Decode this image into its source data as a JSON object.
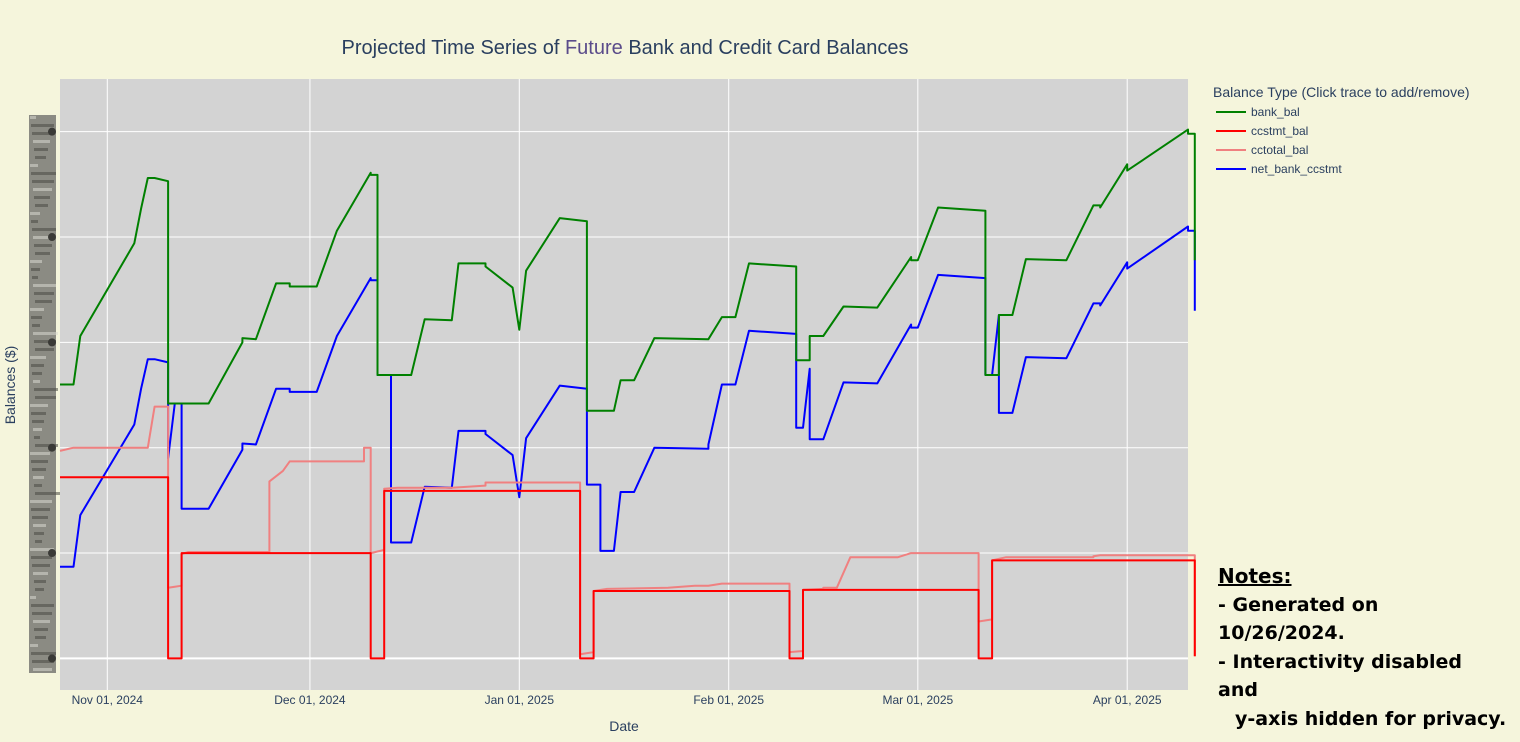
{
  "colors": {
    "background": "#f5f5dc",
    "plot_bg": "#d3d3d3",
    "grid": "#ffffff",
    "text": "#2a3f5f"
  },
  "notes": {
    "heading": "Notes:",
    "lines": [
      "- Generated on 10/26/2024.",
      "- Interactivity disabled and",
      "y-axis hidden for privacy."
    ]
  },
  "chart_data": {
    "type": "line",
    "line_shape": "step-like time series",
    "title_parts": [
      "Projected Time Series of ",
      "Future",
      " Bank and Credit Card Balances"
    ],
    "xlabel": "Date",
    "ylabel": "Balances ($)",
    "x_range": [
      "2024-10-25",
      "2025-04-10"
    ],
    "y_range": [
      -0.3,
      5.5
    ],
    "y_axis_hidden": true,
    "y_ticks": [
      0,
      1,
      2,
      3,
      4,
      5
    ],
    "grid": true,
    "x_ticks": [
      {
        "date": "2024-11-01",
        "label": "Nov 01, 2024"
      },
      {
        "date": "2024-12-01",
        "label": "Dec 01, 2024"
      },
      {
        "date": "2025-01-01",
        "label": "Jan 01, 2025"
      },
      {
        "date": "2025-02-01",
        "label": "Feb 01, 2025"
      },
      {
        "date": "2025-03-01",
        "label": "Mar 01, 2025"
      },
      {
        "date": "2025-04-01",
        "label": "Apr 01, 2025"
      }
    ],
    "legend": {
      "title": "Balance Type (Click trace to add/remove)",
      "placement": "right-top"
    },
    "series": [
      {
        "name": "bank_bal",
        "color": "#008000",
        "points": [
          [
            "2024-10-25",
            2.6
          ],
          [
            "2024-10-27",
            2.6
          ],
          [
            "2024-10-28",
            3.06
          ],
          [
            "2024-11-05",
            3.94
          ],
          [
            "2024-11-06",
            4.27
          ],
          [
            "2024-11-07",
            4.56
          ],
          [
            "2024-11-08",
            4.56
          ],
          [
            "2024-11-10",
            4.53
          ],
          [
            "2024-11-10",
            2.42
          ],
          [
            "2024-11-13",
            2.42
          ],
          [
            "2024-11-16",
            2.42
          ],
          [
            "2024-11-21",
            3.0
          ],
          [
            "2024-11-21",
            3.04
          ],
          [
            "2024-11-23",
            3.03
          ],
          [
            "2024-11-26",
            3.56
          ],
          [
            "2024-11-28",
            3.56
          ],
          [
            "2024-11-28",
            3.53
          ],
          [
            "2024-12-02",
            3.53
          ],
          [
            "2024-12-05",
            4.06
          ],
          [
            "2024-12-10",
            4.61
          ],
          [
            "2024-12-10",
            4.59
          ],
          [
            "2024-12-11",
            4.59
          ],
          [
            "2024-12-11",
            2.69
          ],
          [
            "2024-12-13",
            2.69
          ],
          [
            "2024-12-16",
            2.69
          ],
          [
            "2024-12-18",
            3.22
          ],
          [
            "2024-12-22",
            3.21
          ],
          [
            "2024-12-23",
            3.75
          ],
          [
            "2024-12-27",
            3.75
          ],
          [
            "2024-12-27",
            3.72
          ],
          [
            "2024-12-31",
            3.52
          ],
          [
            "2025-01-01",
            3.12
          ],
          [
            "2025-01-02",
            3.68
          ],
          [
            "2025-01-07",
            4.18
          ],
          [
            "2025-01-11",
            4.15
          ],
          [
            "2025-01-11",
            2.35
          ],
          [
            "2025-01-13",
            2.35
          ],
          [
            "2025-01-15",
            2.35
          ],
          [
            "2025-01-16",
            2.64
          ],
          [
            "2025-01-18",
            2.64
          ],
          [
            "2025-01-21",
            3.04
          ],
          [
            "2025-01-29",
            3.03
          ],
          [
            "2025-01-31",
            3.24
          ],
          [
            "2025-02-02",
            3.24
          ],
          [
            "2025-02-04",
            3.75
          ],
          [
            "2025-02-11",
            3.72
          ],
          [
            "2025-02-11",
            2.83
          ],
          [
            "2025-02-13",
            2.83
          ],
          [
            "2025-02-13",
            3.06
          ],
          [
            "2025-02-15",
            3.06
          ],
          [
            "2025-02-18",
            3.34
          ],
          [
            "2025-02-23",
            3.33
          ],
          [
            "2025-02-28",
            3.81
          ],
          [
            "2025-02-28",
            3.78
          ],
          [
            "2025-03-01",
            3.78
          ],
          [
            "2025-03-04",
            4.28
          ],
          [
            "2025-03-11",
            4.25
          ],
          [
            "2025-03-11",
            2.69
          ],
          [
            "2025-03-13",
            2.69
          ],
          [
            "2025-03-13",
            3.26
          ],
          [
            "2025-03-15",
            3.26
          ],
          [
            "2025-03-17",
            3.79
          ],
          [
            "2025-03-23",
            3.78
          ],
          [
            "2025-03-27",
            4.3
          ],
          [
            "2025-03-28",
            4.3
          ],
          [
            "2025-03-28",
            4.28
          ],
          [
            "2025-04-01",
            4.69
          ],
          [
            "2025-04-01",
            4.63
          ],
          [
            "2025-04-10",
            5.02
          ],
          [
            "2025-04-10",
            4.98
          ],
          [
            "2025-04-11",
            4.98
          ],
          [
            "2025-04-11",
            3.78
          ]
        ]
      },
      {
        "name": "ccstmt_bal",
        "color": "#ff0000",
        "points": [
          [
            "2024-10-25",
            1.72
          ],
          [
            "2024-11-10",
            1.72
          ],
          [
            "2024-11-10",
            0.0
          ],
          [
            "2024-11-12",
            0.0
          ],
          [
            "2024-11-12",
            1.0
          ],
          [
            "2024-12-10",
            1.0
          ],
          [
            "2024-12-10",
            0.0
          ],
          [
            "2024-12-12",
            0.0
          ],
          [
            "2024-12-12",
            1.59
          ],
          [
            "2025-01-10",
            1.59
          ],
          [
            "2025-01-10",
            0.0
          ],
          [
            "2025-01-12",
            0.0
          ],
          [
            "2025-01-12",
            0.64
          ],
          [
            "2025-02-10",
            0.64
          ],
          [
            "2025-02-10",
            0.0
          ],
          [
            "2025-02-12",
            0.0
          ],
          [
            "2025-02-12",
            0.65
          ],
          [
            "2025-03-10",
            0.65
          ],
          [
            "2025-03-10",
            0.0
          ],
          [
            "2025-03-12",
            0.0
          ],
          [
            "2025-03-12",
            0.93
          ],
          [
            "2025-04-11",
            0.93
          ],
          [
            "2025-04-11",
            0.02
          ]
        ]
      },
      {
        "name": "cctotal_bal",
        "color": "#f08080",
        "points": [
          [
            "2024-10-25",
            1.97
          ],
          [
            "2024-10-27",
            2.0
          ],
          [
            "2024-11-07",
            2.0
          ],
          [
            "2024-11-08",
            2.39
          ],
          [
            "2024-11-10",
            2.39
          ],
          [
            "2024-11-10",
            0.67
          ],
          [
            "2024-11-11",
            0.68
          ],
          [
            "2024-11-12",
            0.69
          ],
          [
            "2024-11-12",
            0.99
          ],
          [
            "2024-11-13",
            1.01
          ],
          [
            "2024-11-25",
            1.01
          ],
          [
            "2024-11-25",
            1.68
          ],
          [
            "2024-11-27",
            1.78
          ],
          [
            "2024-11-28",
            1.87
          ],
          [
            "2024-12-09",
            1.87
          ],
          [
            "2024-12-09",
            2.0
          ],
          [
            "2024-12-10",
            2.0
          ],
          [
            "2024-12-10",
            1.0
          ],
          [
            "2024-12-12",
            1.03
          ],
          [
            "2024-12-12",
            1.61
          ],
          [
            "2024-12-14",
            1.62
          ],
          [
            "2024-12-22",
            1.62
          ],
          [
            "2024-12-27",
            1.64
          ],
          [
            "2024-12-27",
            1.67
          ],
          [
            "2025-01-10",
            1.67
          ],
          [
            "2025-01-10",
            0.04
          ],
          [
            "2025-01-12",
            0.06
          ],
          [
            "2025-01-12",
            0.64
          ],
          [
            "2025-01-14",
            0.66
          ],
          [
            "2025-01-23",
            0.67
          ],
          [
            "2025-01-27",
            0.69
          ],
          [
            "2025-01-29",
            0.69
          ],
          [
            "2025-01-31",
            0.71
          ],
          [
            "2025-02-10",
            0.71
          ],
          [
            "2025-02-10",
            0.06
          ],
          [
            "2025-02-12",
            0.07
          ],
          [
            "2025-02-12",
            0.65
          ],
          [
            "2025-02-15",
            0.66
          ],
          [
            "2025-02-15",
            0.67
          ],
          [
            "2025-02-17",
            0.67
          ],
          [
            "2025-02-19",
            0.96
          ],
          [
            "2025-02-26",
            0.96
          ],
          [
            "2025-02-28",
            1.0
          ],
          [
            "2025-03-10",
            1.0
          ],
          [
            "2025-03-10",
            0.35
          ],
          [
            "2025-03-12",
            0.37
          ],
          [
            "2025-03-12",
            0.93
          ],
          [
            "2025-03-14",
            0.96
          ],
          [
            "2025-03-27",
            0.96
          ],
          [
            "2025-03-27",
            0.97
          ],
          [
            "2025-03-28",
            0.98
          ],
          [
            "2025-04-11",
            0.98
          ],
          [
            "2025-04-11",
            0.02
          ]
        ]
      },
      {
        "name": "net_bank_ccstmt",
        "color": "#0000ff",
        "points": [
          [
            "2024-10-25",
            0.87
          ],
          [
            "2024-10-27",
            0.87
          ],
          [
            "2024-10-28",
            1.36
          ],
          [
            "2024-11-05",
            2.22
          ],
          [
            "2024-11-06",
            2.56
          ],
          [
            "2024-11-07",
            2.84
          ],
          [
            "2024-11-08",
            2.84
          ],
          [
            "2024-11-10",
            2.81
          ],
          [
            "2024-11-10",
            1.9
          ],
          [
            "2024-11-11",
            2.42
          ],
          [
            "2024-11-12",
            2.42
          ],
          [
            "2024-11-12",
            1.42
          ],
          [
            "2024-11-13",
            1.42
          ],
          [
            "2024-11-16",
            1.42
          ],
          [
            "2024-11-21",
            1.98
          ],
          [
            "2024-11-21",
            2.04
          ],
          [
            "2024-11-23",
            2.03
          ],
          [
            "2024-11-26",
            2.56
          ],
          [
            "2024-11-28",
            2.56
          ],
          [
            "2024-11-28",
            2.53
          ],
          [
            "2024-12-02",
            2.53
          ],
          [
            "2024-12-05",
            3.06
          ],
          [
            "2024-12-10",
            3.61
          ],
          [
            "2024-12-10",
            3.59
          ],
          [
            "2024-12-11",
            3.59
          ],
          [
            "2024-12-11",
            2.69
          ],
          [
            "2024-12-13",
            2.69
          ],
          [
            "2024-12-13",
            1.1
          ],
          [
            "2024-12-16",
            1.1
          ],
          [
            "2024-12-18",
            1.63
          ],
          [
            "2024-12-22",
            1.62
          ],
          [
            "2024-12-23",
            2.16
          ],
          [
            "2024-12-27",
            2.16
          ],
          [
            "2024-12-27",
            2.13
          ],
          [
            "2024-12-31",
            1.93
          ],
          [
            "2025-01-01",
            1.53
          ],
          [
            "2025-01-02",
            2.09
          ],
          [
            "2025-01-07",
            2.59
          ],
          [
            "2025-01-11",
            2.56
          ],
          [
            "2025-01-11",
            1.65
          ],
          [
            "2025-01-13",
            1.65
          ],
          [
            "2025-01-13",
            1.02
          ],
          [
            "2025-01-15",
            1.02
          ],
          [
            "2025-01-16",
            1.58
          ],
          [
            "2025-01-18",
            1.58
          ],
          [
            "2025-01-21",
            2.0
          ],
          [
            "2025-01-29",
            1.99
          ],
          [
            "2025-01-29",
            2.03
          ],
          [
            "2025-01-31",
            2.6
          ],
          [
            "2025-02-02",
            2.6
          ],
          [
            "2025-02-04",
            3.11
          ],
          [
            "2025-02-11",
            3.08
          ],
          [
            "2025-02-11",
            2.19
          ],
          [
            "2025-02-12",
            2.19
          ],
          [
            "2025-02-13",
            2.75
          ],
          [
            "2025-02-13",
            2.08
          ],
          [
            "2025-02-15",
            2.08
          ],
          [
            "2025-02-18",
            2.62
          ],
          [
            "2025-02-23",
            2.61
          ],
          [
            "2025-02-28",
            3.17
          ],
          [
            "2025-02-28",
            3.14
          ],
          [
            "2025-03-01",
            3.14
          ],
          [
            "2025-03-04",
            3.64
          ],
          [
            "2025-03-11",
            3.61
          ],
          [
            "2025-03-11",
            2.69
          ],
          [
            "2025-03-12",
            2.69
          ],
          [
            "2025-03-13",
            3.26
          ],
          [
            "2025-03-13",
            2.33
          ],
          [
            "2025-03-15",
            2.33
          ],
          [
            "2025-03-17",
            2.86
          ],
          [
            "2025-03-23",
            2.85
          ],
          [
            "2025-03-27",
            3.37
          ],
          [
            "2025-03-28",
            3.37
          ],
          [
            "2025-03-28",
            3.35
          ],
          [
            "2025-04-01",
            3.76
          ],
          [
            "2025-04-01",
            3.7
          ],
          [
            "2025-04-10",
            4.1
          ],
          [
            "2025-04-10",
            4.06
          ],
          [
            "2025-04-11",
            4.06
          ],
          [
            "2025-04-11",
            3.3
          ]
        ]
      }
    ]
  }
}
